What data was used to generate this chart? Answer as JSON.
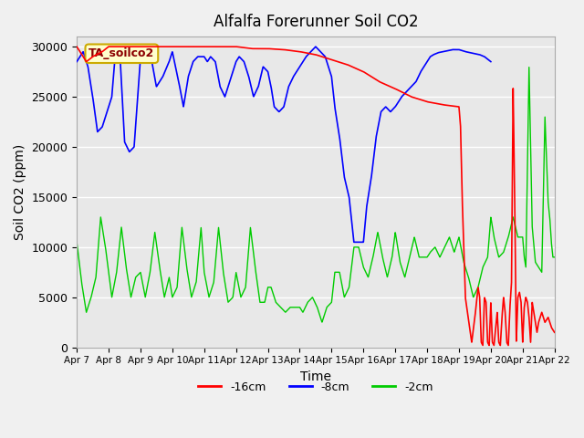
{
  "title": "Alfalfa Forerunner Soil CO2",
  "xlabel": "Time",
  "ylabel": "Soil CO2 (ppm)",
  "ylim": [
    0,
    31000
  ],
  "yticks": [
    0,
    5000,
    10000,
    15000,
    20000,
    25000,
    30000
  ],
  "annotation_text": "TA_soilco2",
  "legend_labels": [
    "-16cm",
    "-8cm",
    "-2cm"
  ],
  "legend_colors": [
    "#ff0000",
    "#0000ff",
    "#00cc00"
  ],
  "line_colors": {
    "red": "#ff0000",
    "blue": "#0000ff",
    "green": "#00cc00"
  },
  "bg_color": "#e8e8e8",
  "x_labels": [
    "Apr 7",
    "Apr 8",
    "Apr 9",
    "Apr 10",
    "Apr 11",
    "Apr 12",
    "Apr 13",
    "Apr 14",
    "Apr 15",
    "Apr 16",
    "Apr 17",
    "Apr 18",
    "Apr 19",
    "Apr 20",
    "Apr 21",
    "Apr 22"
  ]
}
